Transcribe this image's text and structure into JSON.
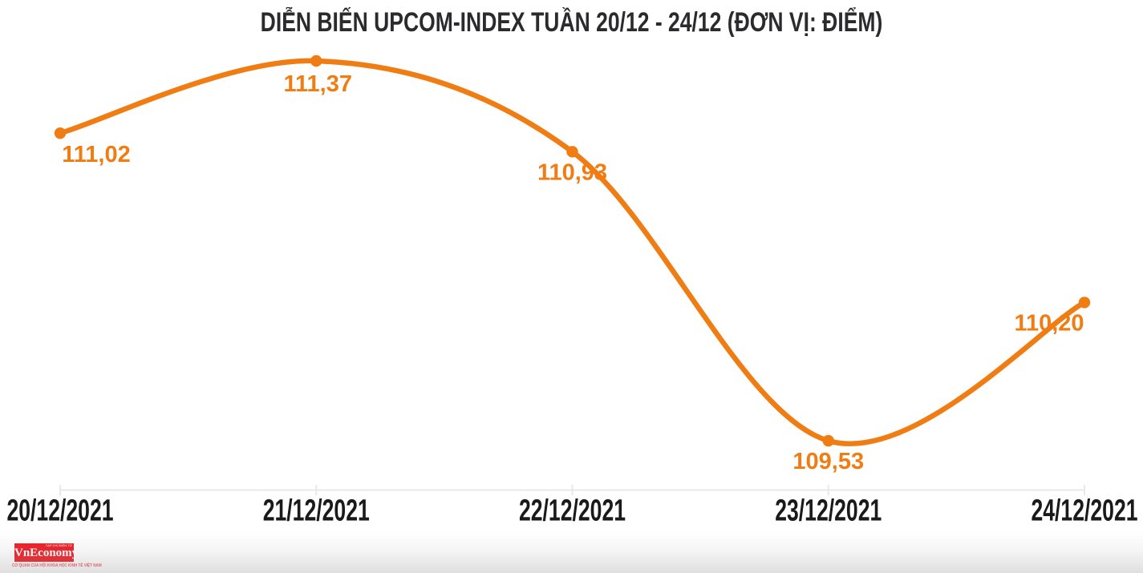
{
  "chart_data": {
    "type": "line",
    "title": "DIỄN BIẾN UPCOM-INDEX TUẦN 20/12 - 24/12 (ĐƠN VỊ: ĐIỂM)",
    "categories": [
      "20/12/2021",
      "21/12/2021",
      "22/12/2021",
      "23/12/2021",
      "24/12/2021"
    ],
    "values": [
      111.02,
      111.37,
      110.93,
      109.53,
      110.2
    ],
    "value_labels": [
      "111,02",
      "111,37",
      "110,93",
      "109,53",
      "110,20"
    ],
    "xlabel": "",
    "ylabel": "",
    "ylim": [
      109.3,
      111.6
    ],
    "grid": false,
    "legend": false,
    "smooth": true,
    "colors": {
      "line": "#ef7d13",
      "point": "#ef7d13",
      "value_label": "#ef7d13",
      "axis": "#e8e8e8",
      "tick_label": "#1a1a1a",
      "title": "#2b2b2e"
    }
  },
  "branding": {
    "logo_text": "VnEconomy",
    "logo_top_text": "TẠP CHÍ ĐIỆN TỬ",
    "logo_subtext": "CƠ QUAN CỦA HỘI KHOA HỌC KINH TẾ VIỆT NAM",
    "logo_bg": "#ec1c24"
  }
}
